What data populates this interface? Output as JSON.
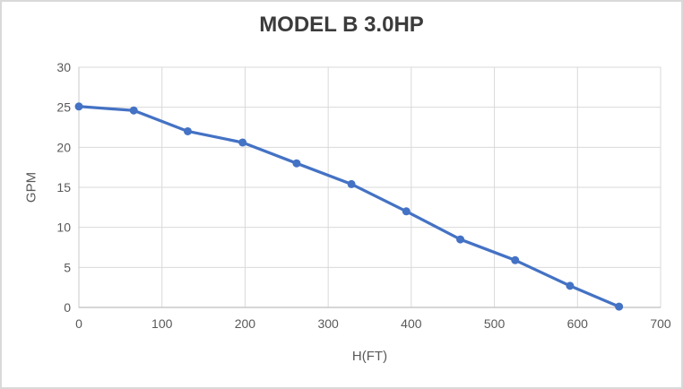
{
  "chart_data": {
    "type": "line",
    "title": "MODEL B 3.0HP",
    "xlabel": "H(FT)",
    "ylabel": "GPM",
    "x": [
      0,
      66,
      131,
      197,
      262,
      328,
      394,
      459,
      525,
      591,
      650
    ],
    "values": [
      25.1,
      24.6,
      22.0,
      20.6,
      18.0,
      15.4,
      12.0,
      8.5,
      5.9,
      2.7,
      0.1
    ],
    "xlim": [
      0,
      700
    ],
    "ylim": [
      0,
      30
    ],
    "xticks": [
      0,
      100,
      200,
      300,
      400,
      500,
      600,
      700
    ],
    "yticks": [
      0,
      5,
      10,
      15,
      20,
      25,
      30
    ],
    "grid": true,
    "legend_position": "none",
    "marker": "circle",
    "colors": {
      "series": "#4472C4",
      "gridline": "#D9D9D9",
      "axis_line": "#C8C8C8",
      "tick_label": "#595959",
      "axis_title": "#595959",
      "title": "#3B3B3B",
      "border": "#D9D9D9",
      "background": "#FFFFFF"
    }
  }
}
